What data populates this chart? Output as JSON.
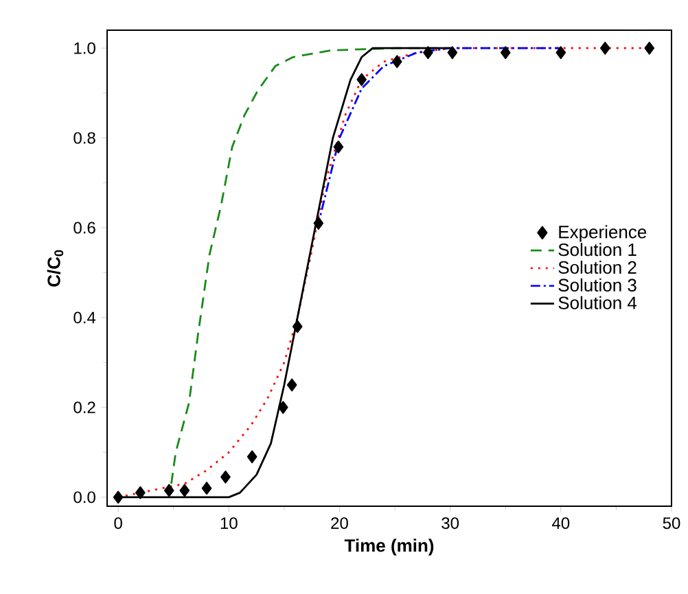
{
  "chart_data": {
    "type": "line",
    "xlabel": "Time (min)",
    "ylabel": "C/C$_{0}$",
    "xlim": [
      -1,
      50
    ],
    "ylim": [
      -0.02,
      1.04
    ],
    "xticks": [
      0,
      10,
      20,
      30,
      40,
      50
    ],
    "yticks": [
      {
        "value": 0,
        "label": "0.0"
      },
      {
        "value": 0.2,
        "label": "0.2"
      },
      {
        "value": 0.4,
        "label": "0.4"
      },
      {
        "value": 0.6,
        "label": "0.6"
      },
      {
        "value": 0.8,
        "label": "0.8"
      },
      {
        "value": 1,
        "label": "1.0"
      }
    ],
    "grid": false,
    "legend": "right",
    "series": [
      {
        "name": "Experience",
        "type": "scatter",
        "marker": "diamond",
        "color": "#000000",
        "x": [
          0,
          2,
          4.6,
          6,
          8,
          9.7,
          12.1,
          14.9,
          15.7,
          16.2,
          18.1,
          19.9,
          22,
          25.2,
          28,
          30.2,
          35,
          40,
          44,
          48
        ],
        "values": [
          0,
          0.01,
          0.015,
          0.015,
          0.02,
          0.045,
          0.09,
          0.2,
          0.25,
          0.38,
          0.61,
          0.78,
          0.93,
          0.97,
          0.99,
          0.99,
          0.99,
          0.99,
          1.0,
          1.0
        ]
      },
      {
        "name": "Solution 1",
        "line_style": "dashed",
        "marker": "none",
        "color": "#1a8a1a",
        "x": [
          4.8,
          5.2,
          6.4,
          7.2,
          8.25,
          9.3,
          10.3,
          11.4,
          12.6,
          14.2,
          15.8,
          19.2,
          25,
          30
        ],
        "values": [
          0.03,
          0.1,
          0.21,
          0.36,
          0.54,
          0.65,
          0.78,
          0.85,
          0.905,
          0.96,
          0.98,
          0.995,
          1.0,
          1.0
        ]
      },
      {
        "name": "Solution 2",
        "line_style": "dotted",
        "marker": "none",
        "color": "#ff0000",
        "x": [
          0,
          2,
          6,
          8,
          10,
          12,
          13.5,
          15,
          16.2,
          17.5,
          18.7,
          20.5,
          22,
          24,
          27,
          30,
          48
        ],
        "values": [
          0,
          0.01,
          0.03,
          0.06,
          0.1,
          0.16,
          0.22,
          0.3,
          0.4,
          0.55,
          0.7,
          0.85,
          0.93,
          0.97,
          0.99,
          1.0,
          1.0
        ]
      },
      {
        "name": "Solution 3",
        "line_style": "dashdotted",
        "marker": "none",
        "color": "#0000ff",
        "x": [
          18,
          20,
          22,
          24,
          27,
          30,
          40
        ],
        "values": [
          0.6,
          0.8,
          0.91,
          0.96,
          0.99,
          1.0,
          1.0
        ]
      },
      {
        "name": "Solution 4",
        "line_style": "solid",
        "marker": "none",
        "color": "#000000",
        "x": [
          0,
          10,
          11,
          12.5,
          13.8,
          15,
          16.2,
          17.8,
          19.4,
          21,
          22,
          23,
          30
        ],
        "values": [
          0,
          0,
          0.01,
          0.05,
          0.12,
          0.25,
          0.4,
          0.6,
          0.8,
          0.93,
          0.98,
          1.0,
          1.0
        ]
      }
    ]
  }
}
